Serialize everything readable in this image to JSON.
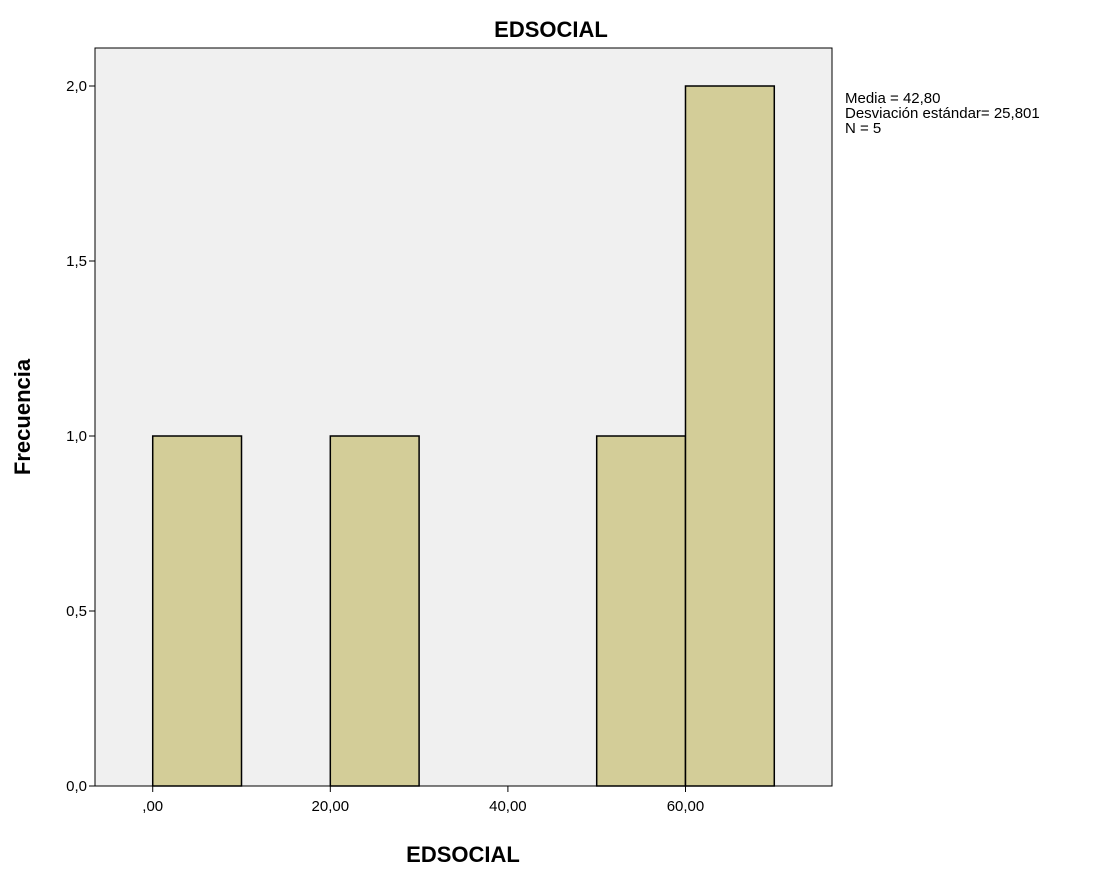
{
  "chart_data": {
    "type": "bar",
    "title": "EDSOCIAL",
    "xlabel": "EDSOCIAL",
    "ylabel": "Frecuencia",
    "bins": [
      {
        "x0": 0,
        "x1": 10,
        "value": 1
      },
      {
        "x0": 20,
        "x1": 30,
        "value": 1
      },
      {
        "x0": 50,
        "x1": 60,
        "value": 1
      },
      {
        "x0": 60,
        "x1": 70,
        "value": 2
      }
    ],
    "xlim": [
      -6.5,
      76.5
    ],
    "ylim": [
      0,
      2.1
    ],
    "x_ticks": [
      {
        "value": 0,
        "label": ",00"
      },
      {
        "value": 20,
        "label": "20,00"
      },
      {
        "value": 40,
        "label": "40,00"
      },
      {
        "value": 60,
        "label": "60,00"
      }
    ],
    "y_ticks": [
      {
        "value": 0,
        "label": "0,0"
      },
      {
        "value": 0.5,
        "label": "0,5"
      },
      {
        "value": 1,
        "label": "1,0"
      },
      {
        "value": 1.5,
        "label": "1,5"
      },
      {
        "value": 2,
        "label": "2,0"
      }
    ],
    "stats": [
      "Media = 42,80",
      "Desviación estándar= 25,801",
      "N = 5"
    ],
    "colors": {
      "bar_fill": "#d3cd98",
      "background": "#f0f0f0"
    },
    "grid": false
  }
}
